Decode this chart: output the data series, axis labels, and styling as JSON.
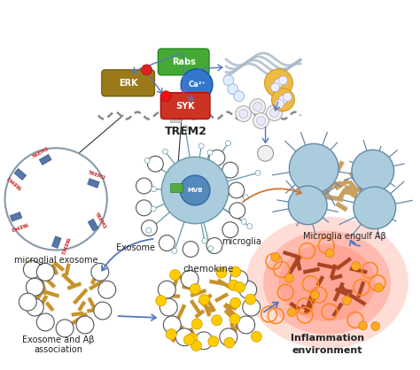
{
  "bg_color": "#ffffff",
  "arrow_blue": "#5577bb",
  "arrow_orange": "#cc7733",
  "membrane_color": "#999999",
  "erk_color": "#8b6914",
  "rabs_color": "#44aa33",
  "ca_color": "#3377cc",
  "syk_color": "#cc3322",
  "fibril_color_gold": "#c8922a",
  "fibril_color_dark": "#aa6622",
  "fibril_color_red": "#cc5533",
  "exo_ring_color": "#555555",
  "microglia_fc": "#aabbcc",
  "microglia_ec": "#7799aa",
  "yellow_dot": "#ffcc00",
  "orange_ring": "#ff8822",
  "trem2_label": "TREM2",
  "microglial_exosome_label": "microglial exosome",
  "microglia_label": "microglia",
  "exosome_label": "Exosome",
  "engulf_label": "Microglia engulf Aβ",
  "chemokine_label": "chemokine",
  "inflammation_label": "Inflammation\nenvironment",
  "exo_ab_label": "Exosome and Aβ\nassociation"
}
